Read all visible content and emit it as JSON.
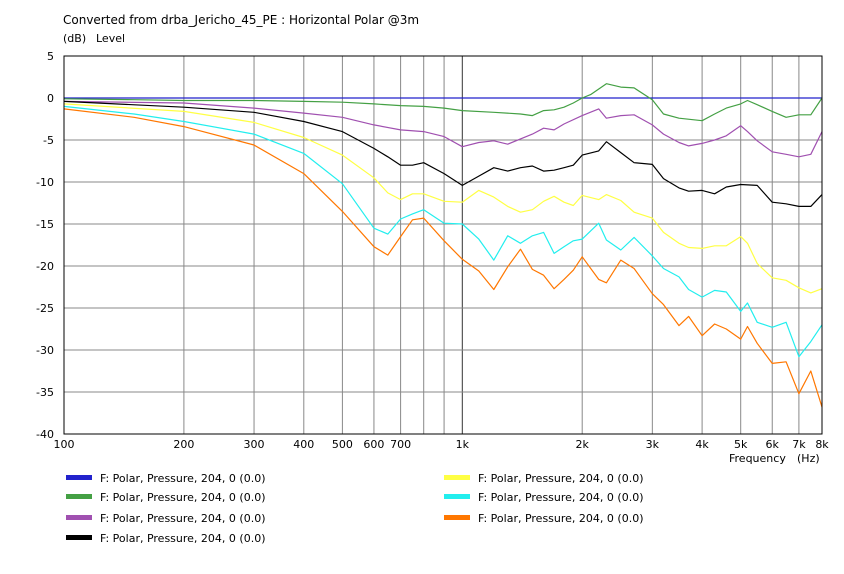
{
  "chart_data": {
    "type": "line",
    "title": "Converted from drba_Jericho_45_PE : Horizontal Polar @3m",
    "ylabel_unit": "(dB)",
    "ylabel": "Level",
    "xlabel": "Frequency",
    "xlabel_unit": "(Hz)",
    "x_scale": "log",
    "xlim": [
      100,
      8000
    ],
    "ylim": [
      -40,
      5
    ],
    "y_ticks": [
      5,
      0,
      -5,
      -10,
      -15,
      -20,
      -25,
      -30,
      -35,
      -40
    ],
    "x_tick_values": [
      100,
      200,
      300,
      400,
      500,
      600,
      700,
      1000,
      2000,
      3000,
      4000,
      5000,
      6000,
      7000,
      8000
    ],
    "x_tick_labels": [
      "100",
      "200",
      "300",
      "400",
      "500",
      "600",
      "700",
      "1k",
      "2k",
      "3k",
      "4k",
      "5k",
      "6k",
      "7k",
      "8k"
    ],
    "grid": true,
    "legend_position": "bottom",
    "series": [
      {
        "name": "F: Polar, Pressure, 204, 0 (0.0)",
        "color": "#2222cc",
        "points": [
          [
            100,
            0
          ],
          [
            1000,
            0
          ],
          [
            8000,
            0
          ]
        ]
      },
      {
        "name": "F: Polar, Pressure, 204, 0 (0.0)",
        "color": "#44a044",
        "points": [
          [
            100,
            -0.1
          ],
          [
            150,
            -0.2
          ],
          [
            200,
            -0.3
          ],
          [
            300,
            -0.3
          ],
          [
            400,
            -0.4
          ],
          [
            500,
            -0.5
          ],
          [
            600,
            -0.7
          ],
          [
            700,
            -0.9
          ],
          [
            800,
            -1.0
          ],
          [
            900,
            -1.2
          ],
          [
            1000,
            -1.5
          ],
          [
            1200,
            -1.7
          ],
          [
            1400,
            -1.9
          ],
          [
            1500,
            -2.1
          ],
          [
            1600,
            -1.5
          ],
          [
            1700,
            -1.4
          ],
          [
            1800,
            -1.1
          ],
          [
            1900,
            -0.6
          ],
          [
            2000,
            0.0
          ],
          [
            2100,
            0.4
          ],
          [
            2300,
            1.7
          ],
          [
            2500,
            1.3
          ],
          [
            2700,
            1.2
          ],
          [
            3000,
            -0.2
          ],
          [
            3200,
            -1.9
          ],
          [
            3500,
            -2.4
          ],
          [
            4000,
            -2.7
          ],
          [
            4300,
            -1.9
          ],
          [
            4600,
            -1.2
          ],
          [
            5000,
            -0.7
          ],
          [
            5200,
            -0.3
          ],
          [
            5500,
            -0.8
          ],
          [
            6000,
            -1.6
          ],
          [
            6500,
            -2.3
          ],
          [
            7000,
            -2.0
          ],
          [
            7500,
            -2.0
          ],
          [
            8000,
            0.0
          ]
        ]
      },
      {
        "name": "F: Polar, Pressure, 204, 0 (0.0)",
        "color": "#a050b0",
        "points": [
          [
            100,
            -0.4
          ],
          [
            200,
            -0.6
          ],
          [
            300,
            -1.2
          ],
          [
            400,
            -1.8
          ],
          [
            500,
            -2.3
          ],
          [
            600,
            -3.2
          ],
          [
            700,
            -3.8
          ],
          [
            800,
            -4.0
          ],
          [
            900,
            -4.6
          ],
          [
            1000,
            -5.8
          ],
          [
            1100,
            -5.3
          ],
          [
            1200,
            -5.1
          ],
          [
            1300,
            -5.5
          ],
          [
            1500,
            -4.3
          ],
          [
            1600,
            -3.6
          ],
          [
            1700,
            -3.8
          ],
          [
            1800,
            -3.1
          ],
          [
            2000,
            -2.1
          ],
          [
            2200,
            -1.3
          ],
          [
            2300,
            -2.4
          ],
          [
            2500,
            -2.1
          ],
          [
            2700,
            -2.0
          ],
          [
            3000,
            -3.2
          ],
          [
            3200,
            -4.3
          ],
          [
            3500,
            -5.3
          ],
          [
            3700,
            -5.7
          ],
          [
            4000,
            -5.4
          ],
          [
            4300,
            -5.0
          ],
          [
            4600,
            -4.5
          ],
          [
            5000,
            -3.3
          ],
          [
            5200,
            -4.0
          ],
          [
            5500,
            -5.1
          ],
          [
            6000,
            -6.4
          ],
          [
            6500,
            -6.7
          ],
          [
            7000,
            -7.0
          ],
          [
            7500,
            -6.7
          ],
          [
            8000,
            -4.0
          ]
        ]
      },
      {
        "name": "F: Polar, Pressure, 204, 0 (0.0)",
        "color": "#000000",
        "points": [
          [
            100,
            -0.4
          ],
          [
            200,
            -1.1
          ],
          [
            300,
            -1.7
          ],
          [
            400,
            -2.8
          ],
          [
            500,
            -4.0
          ],
          [
            600,
            -6.0
          ],
          [
            650,
            -7.0
          ],
          [
            700,
            -8.0
          ],
          [
            750,
            -8.0
          ],
          [
            800,
            -7.7
          ],
          [
            900,
            -9.0
          ],
          [
            1000,
            -10.4
          ],
          [
            1100,
            -9.3
          ],
          [
            1200,
            -8.3
          ],
          [
            1300,
            -8.7
          ],
          [
            1400,
            -8.3
          ],
          [
            1500,
            -8.1
          ],
          [
            1600,
            -8.7
          ],
          [
            1700,
            -8.6
          ],
          [
            1800,
            -8.3
          ],
          [
            1900,
            -8.0
          ],
          [
            2000,
            -6.8
          ],
          [
            2200,
            -6.3
          ],
          [
            2300,
            -5.2
          ],
          [
            2500,
            -6.5
          ],
          [
            2700,
            -7.7
          ],
          [
            3000,
            -7.9
          ],
          [
            3200,
            -9.6
          ],
          [
            3500,
            -10.7
          ],
          [
            3700,
            -11.1
          ],
          [
            4000,
            -11.0
          ],
          [
            4300,
            -11.4
          ],
          [
            4600,
            -10.6
          ],
          [
            5000,
            -10.3
          ],
          [
            5500,
            -10.4
          ],
          [
            6000,
            -12.4
          ],
          [
            6500,
            -12.6
          ],
          [
            7000,
            -12.9
          ],
          [
            7500,
            -12.9
          ],
          [
            8000,
            -11.5
          ]
        ]
      },
      {
        "name": "F: Polar, Pressure, 204, 0 (0.0)",
        "color": "#ffff44",
        "points": [
          [
            100,
            -0.7
          ],
          [
            200,
            -1.6
          ],
          [
            300,
            -2.9
          ],
          [
            400,
            -4.7
          ],
          [
            500,
            -6.8
          ],
          [
            600,
            -9.5
          ],
          [
            650,
            -11.3
          ],
          [
            700,
            -12.1
          ],
          [
            750,
            -11.4
          ],
          [
            800,
            -11.4
          ],
          [
            900,
            -12.3
          ],
          [
            1000,
            -12.4
          ],
          [
            1100,
            -11.0
          ],
          [
            1200,
            -11.8
          ],
          [
            1300,
            -12.9
          ],
          [
            1400,
            -13.6
          ],
          [
            1500,
            -13.3
          ],
          [
            1600,
            -12.3
          ],
          [
            1700,
            -11.7
          ],
          [
            1800,
            -12.4
          ],
          [
            1900,
            -12.8
          ],
          [
            2000,
            -11.6
          ],
          [
            2200,
            -12.1
          ],
          [
            2300,
            -11.5
          ],
          [
            2500,
            -12.2
          ],
          [
            2700,
            -13.6
          ],
          [
            3000,
            -14.3
          ],
          [
            3200,
            -16.0
          ],
          [
            3500,
            -17.3
          ],
          [
            3700,
            -17.8
          ],
          [
            4000,
            -17.9
          ],
          [
            4300,
            -17.6
          ],
          [
            4600,
            -17.6
          ],
          [
            5000,
            -16.5
          ],
          [
            5200,
            -17.3
          ],
          [
            5500,
            -19.7
          ],
          [
            6000,
            -21.4
          ],
          [
            6500,
            -21.7
          ],
          [
            7000,
            -22.6
          ],
          [
            7500,
            -23.2
          ],
          [
            8000,
            -22.7
          ]
        ]
      },
      {
        "name": "F: Polar, Pressure, 204, 0 (0.0)",
        "color": "#22eeee",
        "points": [
          [
            100,
            -1.0
          ],
          [
            150,
            -1.9
          ],
          [
            200,
            -2.8
          ],
          [
            300,
            -4.3
          ],
          [
            400,
            -6.6
          ],
          [
            500,
            -10.2
          ],
          [
            600,
            -15.5
          ],
          [
            650,
            -16.2
          ],
          [
            700,
            -14.4
          ],
          [
            750,
            -13.8
          ],
          [
            800,
            -13.3
          ],
          [
            900,
            -14.9
          ],
          [
            1000,
            -15.0
          ],
          [
            1100,
            -16.8
          ],
          [
            1200,
            -19.3
          ],
          [
            1300,
            -16.4
          ],
          [
            1400,
            -17.3
          ],
          [
            1500,
            -16.4
          ],
          [
            1600,
            -16.0
          ],
          [
            1700,
            -18.5
          ],
          [
            1800,
            -17.7
          ],
          [
            1900,
            -17.0
          ],
          [
            2000,
            -16.8
          ],
          [
            2200,
            -14.9
          ],
          [
            2300,
            -16.9
          ],
          [
            2500,
            -18.1
          ],
          [
            2700,
            -16.6
          ],
          [
            3000,
            -18.8
          ],
          [
            3200,
            -20.3
          ],
          [
            3500,
            -21.3
          ],
          [
            3700,
            -22.8
          ],
          [
            4000,
            -23.7
          ],
          [
            4300,
            -22.9
          ],
          [
            4600,
            -23.1
          ],
          [
            5000,
            -25.4
          ],
          [
            5200,
            -24.4
          ],
          [
            5500,
            -26.7
          ],
          [
            6000,
            -27.3
          ],
          [
            6500,
            -26.7
          ],
          [
            7000,
            -30.8
          ],
          [
            7500,
            -29.0
          ],
          [
            8000,
            -27.0
          ]
        ]
      },
      {
        "name": "F: Polar, Pressure, 204, 0 (0.0)",
        "color": "#ff7700",
        "points": [
          [
            100,
            -1.3
          ],
          [
            150,
            -2.3
          ],
          [
            200,
            -3.4
          ],
          [
            300,
            -5.6
          ],
          [
            400,
            -9.0
          ],
          [
            500,
            -13.5
          ],
          [
            600,
            -17.7
          ],
          [
            650,
            -18.7
          ],
          [
            700,
            -16.5
          ],
          [
            750,
            -14.5
          ],
          [
            800,
            -14.3
          ],
          [
            900,
            -17.0
          ],
          [
            1000,
            -19.2
          ],
          [
            1100,
            -20.6
          ],
          [
            1200,
            -22.8
          ],
          [
            1300,
            -20.1
          ],
          [
            1400,
            -18.0
          ],
          [
            1500,
            -20.4
          ],
          [
            1600,
            -21.1
          ],
          [
            1700,
            -22.7
          ],
          [
            1800,
            -21.6
          ],
          [
            1900,
            -20.5
          ],
          [
            2000,
            -18.9
          ],
          [
            2200,
            -21.6
          ],
          [
            2300,
            -22.0
          ],
          [
            2500,
            -19.3
          ],
          [
            2700,
            -20.3
          ],
          [
            3000,
            -23.3
          ],
          [
            3200,
            -24.6
          ],
          [
            3500,
            -27.1
          ],
          [
            3700,
            -26.0
          ],
          [
            4000,
            -28.3
          ],
          [
            4300,
            -26.9
          ],
          [
            4600,
            -27.5
          ],
          [
            5000,
            -28.7
          ],
          [
            5200,
            -27.2
          ],
          [
            5500,
            -29.2
          ],
          [
            6000,
            -31.6
          ],
          [
            6500,
            -31.4
          ],
          [
            7000,
            -35.2
          ],
          [
            7500,
            -32.5
          ],
          [
            8000,
            -36.8
          ]
        ]
      }
    ]
  }
}
